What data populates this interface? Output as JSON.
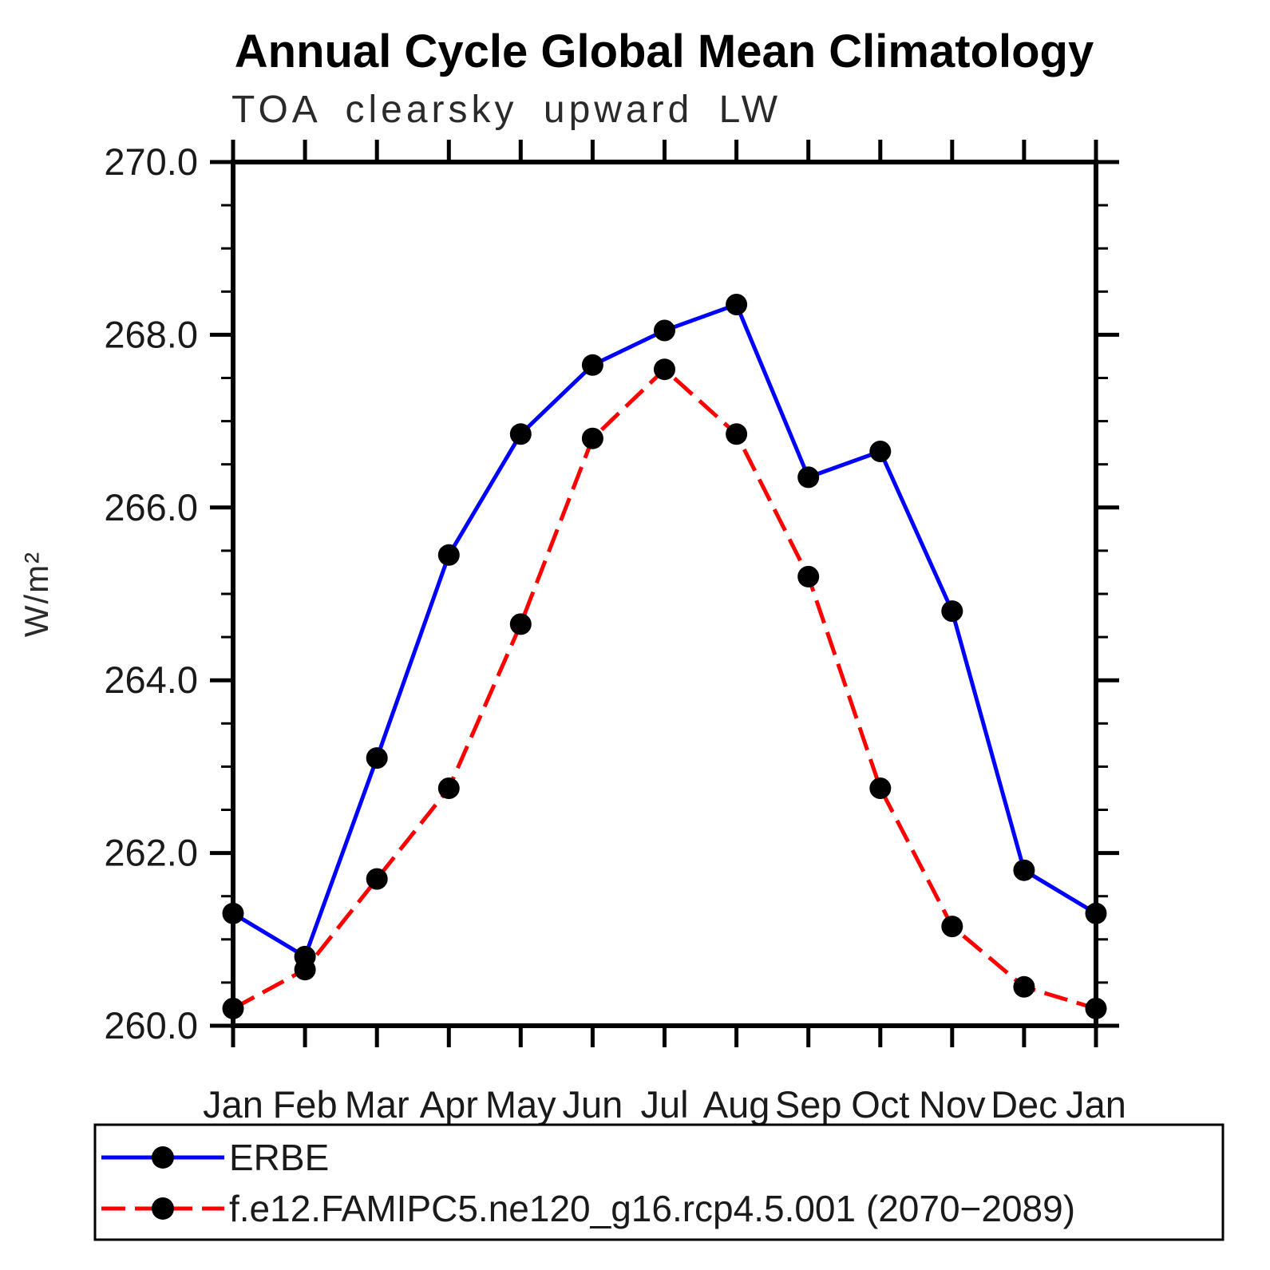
{
  "page": {
    "background_color": "#ffffff"
  },
  "chart_data": {
    "type": "line",
    "title": "Annual Cycle Global Mean Climatology",
    "subtitle": "TOA clearsky upward LW",
    "xlabel": "",
    "ylabel": "W/m²",
    "x_categories": [
      "Jan",
      "Feb",
      "Mar",
      "Apr",
      "May",
      "Jun",
      "Jul",
      "Aug",
      "Sep",
      "Oct",
      "Nov",
      "Dec",
      "Jan"
    ],
    "ylim": [
      260.0,
      270.0
    ],
    "y_major_tick_step": 2.0,
    "y_minor_tick_step": 0.5,
    "y_tick_labels": [
      "260.0",
      "262.0",
      "264.0",
      "266.0",
      "268.0",
      "270.0"
    ],
    "grid": false,
    "legend_position": "bottom-left",
    "axis_color": "#000000",
    "marker_color": "#000000",
    "series": [
      {
        "name": "ERBE",
        "color": "#0000ff",
        "line_style": "solid",
        "marker": "filled-circle",
        "values": [
          261.3,
          260.8,
          263.1,
          265.45,
          266.85,
          267.65,
          268.05,
          268.35,
          266.35,
          266.65,
          264.8,
          261.8,
          261.3
        ]
      },
      {
        "name": "f.e12.FAMIPC5.ne120_g16.rcp4.5.001 (2070−2089)",
        "color": "#ff0000",
        "line_style": "dashed",
        "marker": "filled-circle",
        "values": [
          260.2,
          260.65,
          261.7,
          262.75,
          264.65,
          266.8,
          267.6,
          266.85,
          265.2,
          262.75,
          261.15,
          260.45,
          260.2
        ]
      }
    ]
  }
}
